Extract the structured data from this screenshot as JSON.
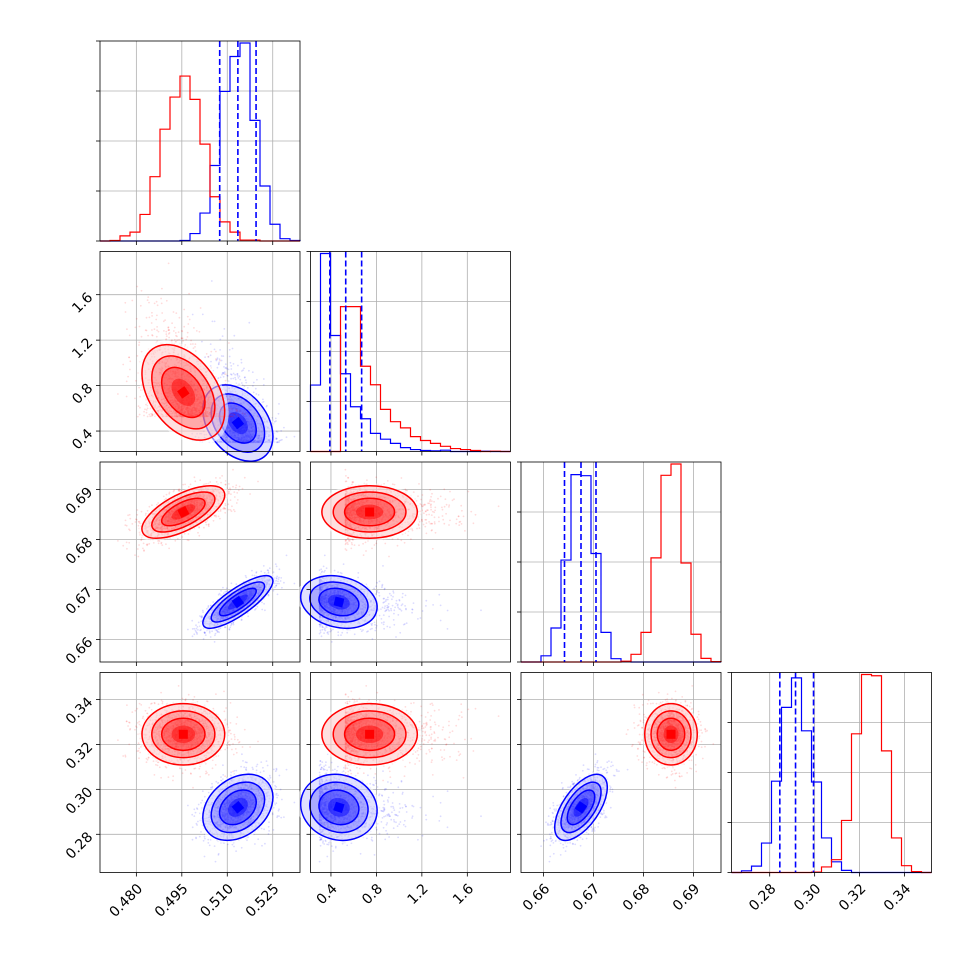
{
  "chart_data": {
    "type": "scatter",
    "plot_kind": "corner plot",
    "grid": true,
    "colors": {
      "blue": "#0000ff",
      "red": "#ff0000"
    },
    "parameters": [
      {
        "range": [
          0.468,
          0.534
        ],
        "ticks": [
          "0.480",
          "0.495",
          "0.510",
          "0.525"
        ]
      },
      {
        "range": [
          0.22,
          1.98
        ],
        "ticks": [
          "0.4",
          "0.8",
          "1.2",
          "1.6"
        ]
      },
      {
        "range": [
          0.6555,
          0.6955
        ],
        "ticks": [
          "0.66",
          "0.67",
          "0.68",
          "0.69"
        ]
      },
      {
        "range": [
          0.263,
          0.352
        ],
        "ticks": [
          "0.28",
          "0.30",
          "0.32",
          "0.34"
        ]
      }
    ],
    "series": [
      {
        "color": "#0000ff",
        "means": [
          0.5135,
          0.47,
          0.6675,
          0.292
        ],
        "sds": [
          0.0055,
          0.16,
          0.0025,
          0.007
        ],
        "corr": [
          [
            1,
            -0.35,
            0.8,
            0.3
          ],
          [
            -0.35,
            1,
            -0.2,
            -0.1
          ],
          [
            0.8,
            -0.2,
            1,
            0.6
          ],
          [
            0.3,
            -0.1,
            0.6,
            1
          ]
        ],
        "quantiles": [
          [
            0.5075,
            0.5135,
            0.5195
          ],
          [
            0.39,
            0.53,
            0.67
          ],
          [
            0.6642,
            0.6675,
            0.6705
          ],
          [
            0.2845,
            0.2915,
            0.2995
          ]
        ]
      },
      {
        "color": "#ff0000",
        "means": [
          0.4955,
          0.74,
          0.6855,
          0.3245
        ],
        "sds": [
          0.0065,
          0.2,
          0.0025,
          0.0065
        ],
        "corr": [
          [
            1,
            -0.4,
            0.65,
            0.0
          ],
          [
            -0.4,
            1,
            0.0,
            0.0
          ],
          [
            0.65,
            0.0,
            1,
            0.0
          ],
          [
            0.0,
            0.0,
            0.0,
            1
          ]
        ]
      }
    ]
  }
}
